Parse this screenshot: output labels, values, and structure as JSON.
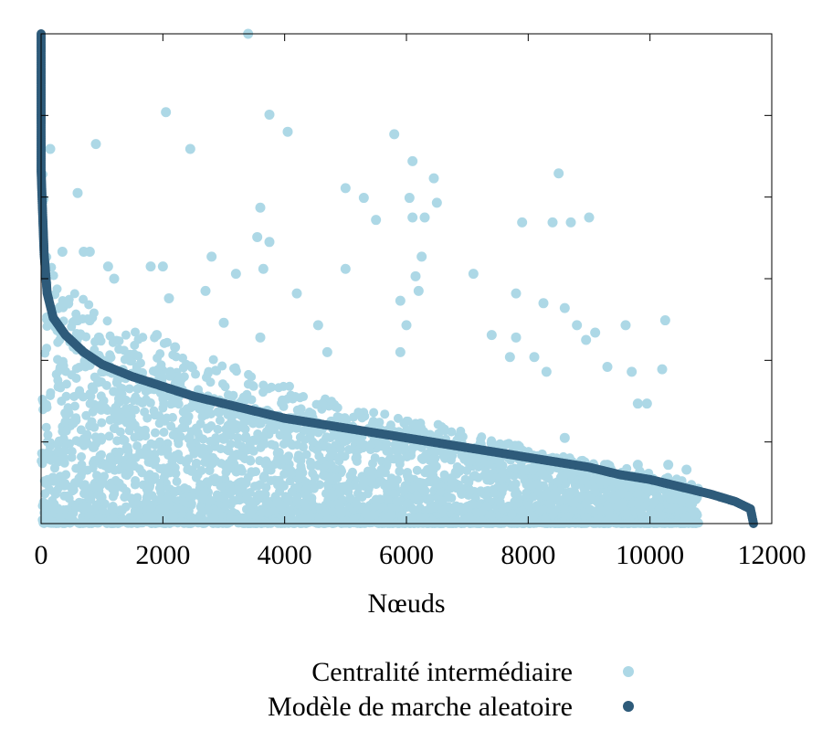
{
  "chart_data": {
    "type": "scatter",
    "title": "",
    "xlabel": "Nœuds",
    "ylabel": "",
    "xlim": [
      0,
      12000
    ],
    "ylim": [
      0,
      1
    ],
    "x_ticks": [
      "0",
      "2000",
      "4000",
      "6000",
      "8000",
      "10000",
      "12000"
    ],
    "y_ticks_labeled": false,
    "grid": false,
    "legend_position": "bottom-right",
    "series": [
      {
        "name": "Centralité intermédiaire",
        "color": "#add8e6",
        "marker": "circle",
        "description_points": [
          [
            3400,
            1.0
          ],
          [
            2050,
            0.84
          ],
          [
            3750,
            0.835
          ],
          [
            4050,
            0.8
          ],
          [
            5800,
            0.795
          ],
          [
            900,
            0.775
          ],
          [
            150,
            0.765
          ],
          [
            2450,
            0.765
          ],
          [
            6100,
            0.74
          ],
          [
            8500,
            0.715
          ],
          [
            6450,
            0.705
          ],
          [
            5000,
            0.685
          ],
          [
            600,
            0.675
          ],
          [
            5300,
            0.665
          ],
          [
            6050,
            0.665
          ],
          [
            6500,
            0.655
          ],
          [
            3600,
            0.645
          ],
          [
            5500,
            0.62
          ],
          [
            6100,
            0.625
          ],
          [
            6300,
            0.625
          ],
          [
            7900,
            0.615
          ],
          [
            8400,
            0.615
          ],
          [
            8700,
            0.615
          ],
          [
            9000,
            0.625
          ],
          [
            3550,
            0.585
          ],
          [
            3750,
            0.575
          ],
          [
            350,
            0.555
          ],
          [
            700,
            0.555
          ],
          [
            800,
            0.555
          ],
          [
            6250,
            0.545
          ],
          [
            2800,
            0.545
          ],
          [
            1100,
            0.525
          ],
          [
            1800,
            0.525
          ],
          [
            2000,
            0.525
          ],
          [
            3650,
            0.52
          ],
          [
            5000,
            0.52
          ],
          [
            6150,
            0.505
          ],
          [
            7100,
            0.51
          ],
          [
            1200,
            0.5
          ],
          [
            3200,
            0.51
          ],
          [
            2700,
            0.475
          ],
          [
            4200,
            0.47
          ],
          [
            6200,
            0.475
          ],
          [
            7800,
            0.47
          ],
          [
            8250,
            0.45
          ],
          [
            8600,
            0.44
          ],
          [
            2100,
            0.46
          ],
          [
            5900,
            0.455
          ],
          [
            600,
            0.415
          ],
          [
            800,
            0.415
          ],
          [
            3000,
            0.41
          ],
          [
            4550,
            0.405
          ],
          [
            6000,
            0.405
          ],
          [
            8800,
            0.405
          ],
          [
            9600,
            0.405
          ],
          [
            10250,
            0.415
          ],
          [
            950,
            0.38
          ],
          [
            1900,
            0.385
          ],
          [
            3600,
            0.38
          ],
          [
            7400,
            0.385
          ],
          [
            7800,
            0.38
          ],
          [
            8950,
            0.375
          ],
          [
            9100,
            0.39
          ],
          [
            600,
            0.36
          ],
          [
            2200,
            0.36
          ],
          [
            4700,
            0.35
          ],
          [
            5900,
            0.35
          ],
          [
            7700,
            0.34
          ],
          [
            8100,
            0.34
          ],
          [
            9300,
            0.32
          ],
          [
            10200,
            0.315
          ],
          [
            8300,
            0.31
          ],
          [
            9700,
            0.31
          ],
          [
            9800,
            0.245
          ],
          [
            9950,
            0.245
          ],
          [
            8600,
            0.175
          ],
          [
            9300,
            0.12
          ],
          [
            9800,
            0.12
          ],
          [
            10300,
            0.12
          ],
          [
            10600,
            0.11
          ]
        ]
      },
      {
        "name": "Modèle de marche aleatoire",
        "color": "#2e5b7a",
        "marker": "circle",
        "description_points": [
          [
            0,
            1.0
          ],
          [
            0,
            0.93
          ],
          [
            0,
            0.88
          ],
          [
            0,
            0.72
          ],
          [
            20,
            0.65
          ],
          [
            50,
            0.55
          ],
          [
            100,
            0.47
          ],
          [
            200,
            0.42
          ],
          [
            400,
            0.385
          ],
          [
            700,
            0.35
          ],
          [
            1000,
            0.325
          ],
          [
            1500,
            0.3
          ],
          [
            2000,
            0.28
          ],
          [
            2500,
            0.26
          ],
          [
            3000,
            0.245
          ],
          [
            3500,
            0.23
          ],
          [
            4000,
            0.215
          ],
          [
            4500,
            0.205
          ],
          [
            5000,
            0.195
          ],
          [
            5500,
            0.185
          ],
          [
            6000,
            0.175
          ],
          [
            6500,
            0.165
          ],
          [
            7000,
            0.155
          ],
          [
            7500,
            0.145
          ],
          [
            8000,
            0.135
          ],
          [
            8500,
            0.125
          ],
          [
            9000,
            0.115
          ],
          [
            9500,
            0.1
          ],
          [
            10000,
            0.09
          ],
          [
            10500,
            0.075
          ],
          [
            11000,
            0.06
          ],
          [
            11400,
            0.045
          ],
          [
            11650,
            0.03
          ],
          [
            11700,
            0.0
          ]
        ]
      }
    ]
  }
}
